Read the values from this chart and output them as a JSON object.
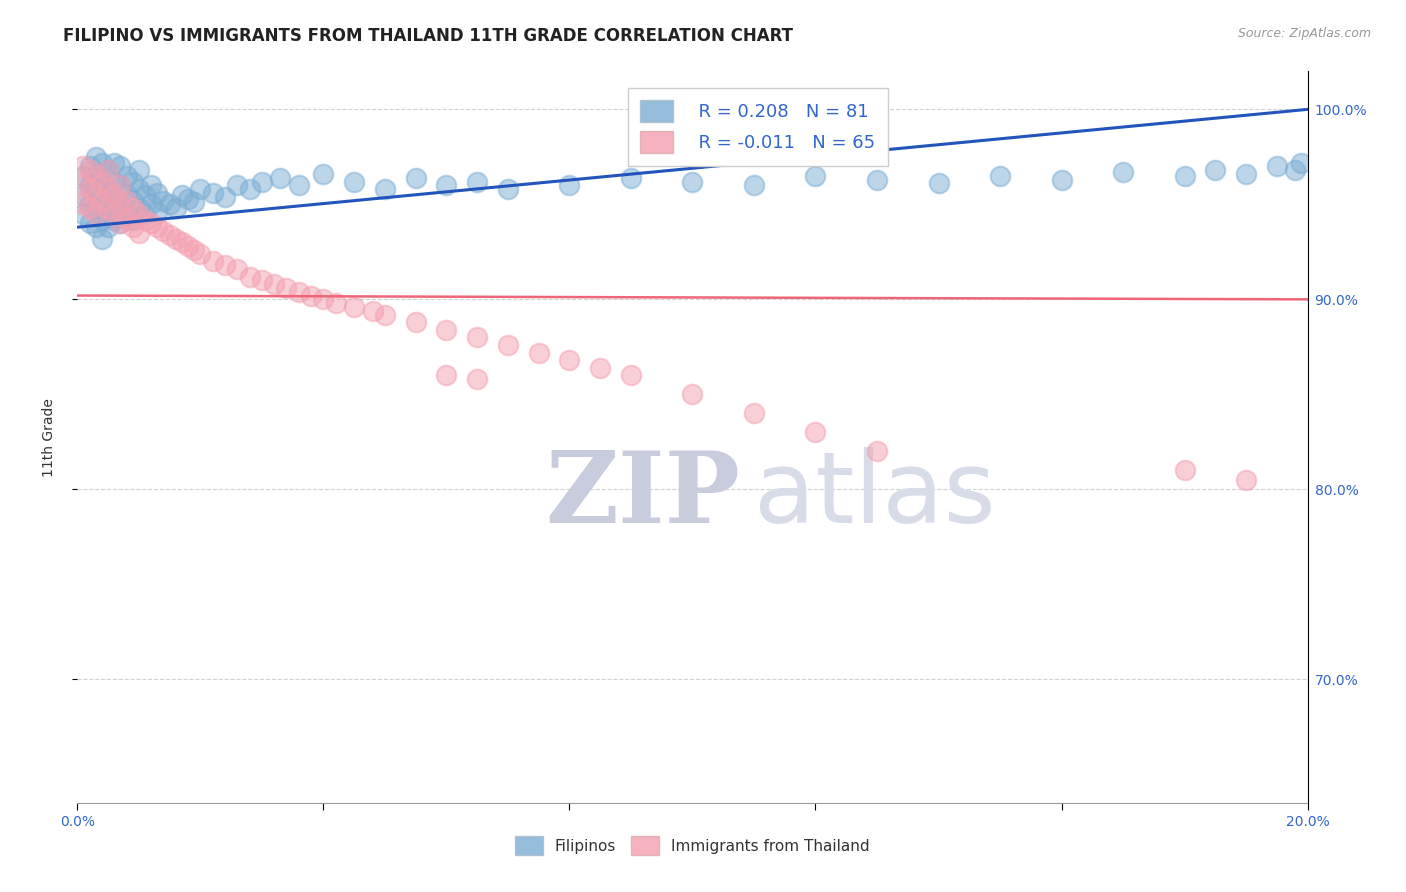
{
  "title": "FILIPINO VS IMMIGRANTS FROM THAILAND 11TH GRADE CORRELATION CHART",
  "source": "Source: ZipAtlas.com",
  "ylabel": "11th Grade",
  "ytick_labels": [
    "100.0%",
    "90.0%",
    "80.0%",
    "70.0%"
  ],
  "ytick_values": [
    1.0,
    0.9,
    0.8,
    0.7
  ],
  "xmin": 0.0,
  "xmax": 0.2,
  "ymin": 0.635,
  "ymax": 1.02,
  "legend_r_blue": "R = 0.208",
  "legend_n_blue": "N = 81",
  "legend_r_pink": "R = -0.011",
  "legend_n_pink": "N = 65",
  "legend_label_blue": "Filipinos",
  "legend_label_pink": "Immigrants from Thailand",
  "blue_color": "#7BADD4",
  "pink_color": "#F4A0B0",
  "line_blue_color": "#2255BB",
  "line_pink_color": "#EE6677",
  "watermark_zip": "ZIP",
  "watermark_atlas": "atlas",
  "blue_scatter_x": [
    0.001,
    0.001,
    0.001,
    0.002,
    0.002,
    0.002,
    0.002,
    0.003,
    0.003,
    0.003,
    0.003,
    0.003,
    0.004,
    0.004,
    0.004,
    0.004,
    0.004,
    0.005,
    0.005,
    0.005,
    0.005,
    0.006,
    0.006,
    0.006,
    0.006,
    0.007,
    0.007,
    0.007,
    0.007,
    0.008,
    0.008,
    0.008,
    0.009,
    0.009,
    0.009,
    0.01,
    0.01,
    0.01,
    0.011,
    0.011,
    0.012,
    0.012,
    0.013,
    0.013,
    0.014,
    0.015,
    0.016,
    0.017,
    0.018,
    0.019,
    0.02,
    0.022,
    0.024,
    0.026,
    0.028,
    0.03,
    0.033,
    0.036,
    0.04,
    0.045,
    0.05,
    0.055,
    0.06,
    0.065,
    0.07,
    0.08,
    0.09,
    0.1,
    0.11,
    0.12,
    0.13,
    0.14,
    0.15,
    0.16,
    0.17,
    0.18,
    0.185,
    0.19,
    0.195,
    0.198,
    0.199
  ],
  "blue_scatter_y": [
    0.965,
    0.955,
    0.945,
    0.97,
    0.96,
    0.95,
    0.94,
    0.975,
    0.965,
    0.958,
    0.948,
    0.938,
    0.972,
    0.962,
    0.952,
    0.942,
    0.932,
    0.968,
    0.958,
    0.948,
    0.938,
    0.972,
    0.962,
    0.952,
    0.942,
    0.97,
    0.96,
    0.95,
    0.94,
    0.965,
    0.955,
    0.945,
    0.962,
    0.952,
    0.942,
    0.968,
    0.958,
    0.948,
    0.955,
    0.945,
    0.96,
    0.95,
    0.956,
    0.946,
    0.952,
    0.95,
    0.948,
    0.955,
    0.953,
    0.951,
    0.958,
    0.956,
    0.954,
    0.96,
    0.958,
    0.962,
    0.964,
    0.96,
    0.966,
    0.962,
    0.958,
    0.964,
    0.96,
    0.962,
    0.958,
    0.96,
    0.964,
    0.962,
    0.96,
    0.965,
    0.963,
    0.961,
    0.965,
    0.963,
    0.967,
    0.965,
    0.968,
    0.966,
    0.97,
    0.968,
    0.972
  ],
  "pink_scatter_x": [
    0.001,
    0.001,
    0.001,
    0.002,
    0.002,
    0.002,
    0.003,
    0.003,
    0.003,
    0.004,
    0.004,
    0.005,
    0.005,
    0.005,
    0.006,
    0.006,
    0.007,
    0.007,
    0.007,
    0.008,
    0.008,
    0.009,
    0.009,
    0.01,
    0.01,
    0.011,
    0.012,
    0.013,
    0.014,
    0.015,
    0.016,
    0.017,
    0.018,
    0.019,
    0.02,
    0.022,
    0.024,
    0.026,
    0.028,
    0.03,
    0.032,
    0.034,
    0.036,
    0.038,
    0.04,
    0.042,
    0.045,
    0.048,
    0.05,
    0.055,
    0.06,
    0.065,
    0.07,
    0.075,
    0.08,
    0.085,
    0.09,
    0.1,
    0.11,
    0.12,
    0.06,
    0.065,
    0.13,
    0.18,
    0.19
  ],
  "pink_scatter_y": [
    0.97,
    0.96,
    0.95,
    0.968,
    0.958,
    0.948,
    0.965,
    0.955,
    0.945,
    0.962,
    0.952,
    0.968,
    0.958,
    0.948,
    0.955,
    0.945,
    0.96,
    0.95,
    0.94,
    0.952,
    0.942,
    0.948,
    0.938,
    0.945,
    0.935,
    0.942,
    0.94,
    0.938,
    0.936,
    0.934,
    0.932,
    0.93,
    0.928,
    0.926,
    0.924,
    0.92,
    0.918,
    0.916,
    0.912,
    0.91,
    0.908,
    0.906,
    0.904,
    0.902,
    0.9,
    0.898,
    0.896,
    0.894,
    0.892,
    0.888,
    0.884,
    0.88,
    0.876,
    0.872,
    0.868,
    0.864,
    0.86,
    0.85,
    0.84,
    0.83,
    0.86,
    0.858,
    0.82,
    0.81,
    0.805
  ],
  "blue_line_x0": 0.0,
  "blue_line_x1": 0.2,
  "blue_line_y0": 0.938,
  "blue_line_y1": 1.0,
  "pink_line_x0": 0.0,
  "pink_line_x1": 0.2,
  "pink_line_y0": 0.902,
  "pink_line_y1": 0.9,
  "grid_color": "#CCCCCC",
  "background_color": "#FFFFFF",
  "title_fontsize": 12,
  "axis_label_fontsize": 10,
  "tick_fontsize": 10,
  "legend_fontsize": 13,
  "watermark_color_zip": "#C8CCDD",
  "watermark_color_atlas": "#D8DCE8",
  "watermark_fontsize": 72
}
